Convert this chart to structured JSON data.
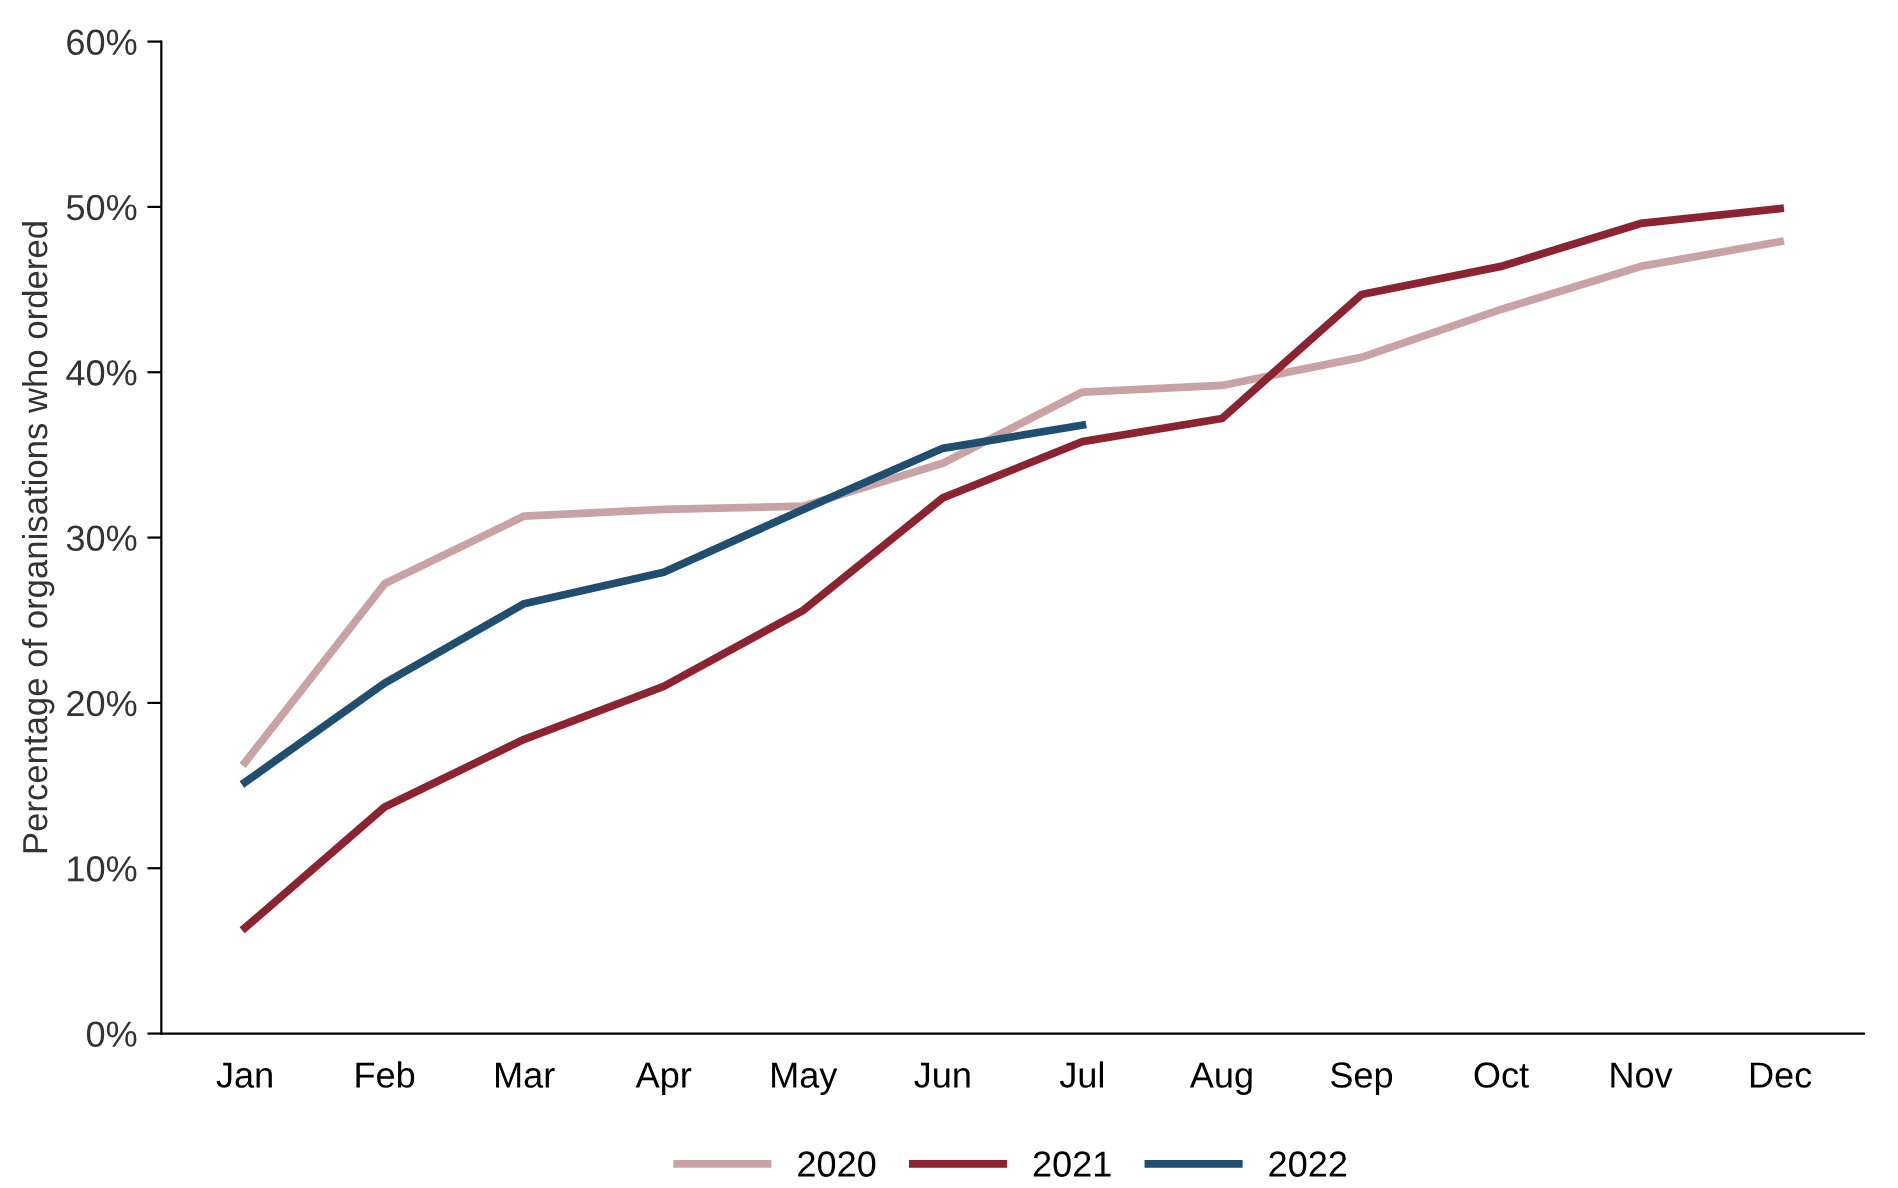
{
  "chart_data": {
    "type": "line",
    "ylabel": "Percentage of organisations who ordered",
    "categories": [
      "Jan",
      "Feb",
      "Mar",
      "Apr",
      "May",
      "Jun",
      "Jul",
      "Aug",
      "Sep",
      "Oct",
      "Nov",
      "Dec"
    ],
    "series": [
      {
        "name": "2020",
        "color": "#c9a3a3",
        "values": [
          16.4,
          27.2,
          31.3,
          31.7,
          31.9,
          34.5,
          38.8,
          39.2,
          40.9,
          43.8,
          46.4,
          47.9
        ]
      },
      {
        "name": "2021",
        "color": "#8b2331",
        "values": [
          6.4,
          13.7,
          17.8,
          21.0,
          25.6,
          32.4,
          35.8,
          37.2,
          44.7,
          46.4,
          49.0,
          49.9
        ]
      },
      {
        "name": "2022",
        "color": "#1f4e6e",
        "values": [
          15.2,
          21.2,
          26.0,
          27.9,
          31.7,
          35.4,
          36.8,
          null,
          null,
          null,
          null,
          null
        ]
      }
    ],
    "ylim": [
      0,
      60
    ],
    "yticks": [
      {
        "value": 0,
        "label": "0%"
      },
      {
        "value": 10,
        "label": "10%"
      },
      {
        "value": 20,
        "label": "20%"
      },
      {
        "value": 30,
        "label": "30%"
      },
      {
        "value": 40,
        "label": "40%"
      },
      {
        "value": 50,
        "label": "50%"
      },
      {
        "value": 60,
        "label": "60%"
      }
    ],
    "legend": "bottom",
    "marker": "none",
    "line_style": "solid",
    "grid": false
  }
}
